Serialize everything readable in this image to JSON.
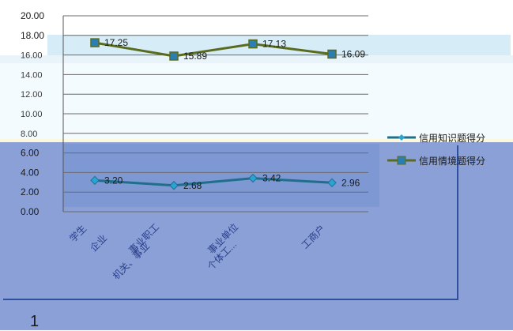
{
  "chart_data": {
    "type": "line",
    "categories": [
      "学生",
      "企业职工",
      "机关、事业",
      "个体工商户"
    ],
    "x_tick_labels": [
      "学生",
      "企业",
      "事业职工",
      "机关、事业",
      "事业单位",
      "个体工...",
      "工商户"
    ],
    "series": [
      {
        "name": "信用知识题得分",
        "values": [
          3.2,
          2.68,
          3.42,
          2.96
        ],
        "labels": [
          "3.20",
          "2.68",
          "3.42",
          "2.96"
        ],
        "color": "#1f6f8b"
      },
      {
        "name": "信用情境题得分",
        "values": [
          17.25,
          15.89,
          17.13,
          16.09
        ],
        "labels": [
          "17.25",
          "15.89",
          "17.13",
          "16.09"
        ],
        "color": "#5a6b1e"
      }
    ],
    "y_ticks": [
      "20.00",
      "18.00",
      "16.00",
      "14.00",
      "12.00",
      "10.00",
      "8.00",
      "6.00",
      "4.00",
      "2.00",
      "0.00"
    ],
    "ylim": [
      0,
      20
    ],
    "grid": true,
    "legend": "right",
    "title": "",
    "xlabel": "",
    "ylabel": ""
  },
  "footer_number": "1"
}
